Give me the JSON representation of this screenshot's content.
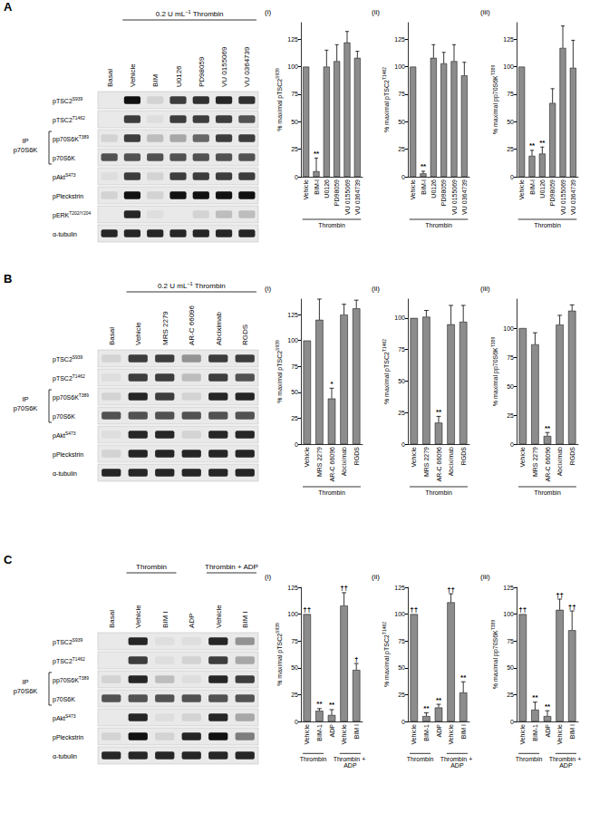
{
  "panel_labels": [
    "A",
    "B",
    "C"
  ],
  "blots": [
    {
      "panel": "A",
      "headers": [
        {
          "parts": [
            {
              "text": "0.2 U mL"
            },
            {
              "sup": "−1"
            },
            {
              "text": " Thrombin"
            }
          ],
          "from": 1,
          "to": 6
        }
      ],
      "lanes": [
        "Basal",
        "Vehicle",
        "BIM",
        "U0126",
        "PD98059",
        "VU 0155069",
        "VU 0364739"
      ],
      "ip": {
        "lines": [
          "IP",
          "p70S6K"
        ],
        "rows": [
          2,
          3
        ]
      },
      "rows": [
        {
          "label": [
            {
              "text": "pTSC2"
            },
            {
              "sup": "S939"
            }
          ],
          "bands": [
            0,
            1,
            0.1,
            0.8,
            0.85,
            0.9,
            0.85
          ]
        },
        {
          "label": [
            {
              "text": "pTSC2"
            },
            {
              "sup": "T1462"
            }
          ],
          "bands": [
            0,
            0.8,
            0.05,
            0.8,
            0.8,
            0.8,
            0.7
          ]
        },
        {
          "label": [
            {
              "text": "pp70S6K"
            },
            {
              "sup": "T389"
            }
          ],
          "bands": [
            0.1,
            0.8,
            0.2,
            0.3,
            0.6,
            0.8,
            0.8
          ]
        },
        {
          "label": [
            {
              "text": "p70S6K"
            }
          ],
          "bands": [
            0.7,
            0.7,
            0.7,
            0.7,
            0.7,
            0.7,
            0.7
          ]
        },
        {
          "label": [
            {
              "text": "pAkt"
            },
            {
              "sup": "S473"
            }
          ],
          "bands": [
            0.05,
            0.8,
            0.1,
            0.8,
            0.8,
            0.8,
            0.8
          ]
        },
        {
          "label": [
            {
              "text": "pPleckstrin"
            }
          ],
          "bands": [
            0.1,
            1,
            0.1,
            1,
            1,
            1,
            1
          ]
        },
        {
          "label": [
            {
              "text": "pERK"
            },
            {
              "sup": "T202/Y204"
            }
          ],
          "bands": [
            0,
            0.9,
            0.05,
            0,
            0.1,
            0.2,
            0.2
          ]
        },
        {
          "label": [
            {
              "text": "α-tubulin"
            }
          ],
          "bands": [
            0.9,
            0.9,
            0.9,
            0.9,
            0.9,
            0.9,
            0.9
          ]
        }
      ]
    },
    {
      "panel": "B",
      "headers": [
        {
          "parts": [
            {
              "text": "0.2 U mL"
            },
            {
              "sup": "−1"
            },
            {
              "text": " Thrombin"
            }
          ],
          "from": 1,
          "to": 5
        }
      ],
      "lanes": [
        "Basal",
        "Vehicle",
        "MRS 2279",
        "AR-C 66096",
        "Abciximab",
        "RGDS"
      ],
      "ip": {
        "lines": [
          "IP",
          "p70S6K"
        ],
        "rows": [
          2,
          3
        ]
      },
      "rows": [
        {
          "label": [
            {
              "text": "pTSC2"
            },
            {
              "sup": "S939"
            }
          ],
          "bands": [
            0.1,
            0.8,
            0.8,
            0.4,
            0.8,
            0.8
          ]
        },
        {
          "label": [
            {
              "text": "pTSC2"
            },
            {
              "sup": "T1462"
            }
          ],
          "bands": [
            0.05,
            0.8,
            0.8,
            0.2,
            0.8,
            0.7
          ]
        },
        {
          "label": [
            {
              "text": "pp70S6K"
            },
            {
              "sup": "T389"
            }
          ],
          "bands": [
            0.1,
            0.9,
            0.8,
            0.1,
            0.9,
            0.9
          ]
        },
        {
          "label": [
            {
              "text": "p70S6K"
            }
          ],
          "bands": [
            0.7,
            0.7,
            0.7,
            0.7,
            0.7,
            0.7
          ]
        },
        {
          "label": [
            {
              "text": "pAkt"
            },
            {
              "sup": "S473"
            }
          ],
          "bands": [
            0.05,
            0.9,
            0.9,
            0.1,
            0.9,
            0.9
          ]
        },
        {
          "label": [
            {
              "text": "pPleckstrin"
            }
          ],
          "bands": [
            0.1,
            0.9,
            0.9,
            0.9,
            0.9,
            0.9
          ]
        },
        {
          "label": [
            {
              "text": "α-tubulin"
            }
          ],
          "bands": [
            0.9,
            0.9,
            0.9,
            0.9,
            0.9,
            0.9
          ]
        }
      ]
    },
    {
      "panel": "C",
      "headers": [
        {
          "parts": [
            {
              "text": "Thrombin"
            }
          ],
          "from": 1,
          "to": 2
        },
        {
          "parts": [
            {
              "text": "Thrombin + ADP"
            }
          ],
          "from": 4,
          "to": 5
        }
      ],
      "lanes": [
        "Basal",
        "Vehicle",
        "BIM I",
        "ADP",
        "Vehicle",
        "BIM I"
      ],
      "ip": {
        "lines": [
          "IP",
          "p70S6K"
        ],
        "rows": [
          2,
          3
        ]
      },
      "rows": [
        {
          "label": [
            {
              "text": "pTSC2"
            },
            {
              "sup": "S939"
            }
          ],
          "bands": [
            0,
            0.9,
            0.05,
            0.05,
            0.9,
            0.4
          ]
        },
        {
          "label": [
            {
              "text": "pTSC2"
            },
            {
              "sup": "T1462"
            }
          ],
          "bands": [
            0,
            0.8,
            0.05,
            0.1,
            0.8,
            0.3
          ]
        },
        {
          "label": [
            {
              "text": "pp70S6K"
            },
            {
              "sup": "T389"
            }
          ],
          "bands": [
            0.1,
            0.9,
            0.2,
            0.05,
            0.9,
            0.8
          ]
        },
        {
          "label": [
            {
              "text": "p70S6K"
            }
          ],
          "bands": [
            0.7,
            0.7,
            0.7,
            0.7,
            0.7,
            0.7
          ]
        },
        {
          "label": [
            {
              "text": "pAkt"
            },
            {
              "sup": "S473"
            }
          ],
          "bands": [
            0,
            0.9,
            0.05,
            0.1,
            0.9,
            0.3
          ]
        },
        {
          "label": [
            {
              "text": "pPleckstrin"
            }
          ],
          "bands": [
            0.1,
            1,
            0.1,
            0.9,
            1,
            0.5
          ]
        },
        {
          "label": [
            {
              "text": "α-tubulin"
            }
          ],
          "bands": [
            0.9,
            0.9,
            0.9,
            0.9,
            0.9,
            0.9
          ]
        }
      ]
    }
  ],
  "chart_data": [
    {
      "type": "bar",
      "panel": "A",
      "title": "(i)",
      "y_label": [
        {
          "text": "% maximal pTSC2"
        },
        {
          "sup": "S939"
        }
      ],
      "categories": [
        "Vehicle",
        "BIM-I",
        "U0126",
        "PD98059",
        "VU 0155069",
        "VU 0364739"
      ],
      "values": [
        100,
        5,
        100,
        105,
        122,
        108
      ],
      "errors": [
        null,
        12,
        15,
        15,
        10,
        6
      ],
      "annotations": [
        null,
        "**",
        null,
        null,
        null,
        null
      ],
      "groups": [
        {
          "label": "Thrombin",
          "from": 0,
          "to": 5
        }
      ],
      "color": "#8c8c8c",
      "ylim": [
        0,
        140
      ],
      "yticks": [
        0,
        25,
        50,
        75,
        100,
        125
      ],
      "grid": false
    },
    {
      "type": "bar",
      "panel": "A",
      "title": "(ii)",
      "y_label": [
        {
          "text": "% maximal pTSC2"
        },
        {
          "sup": "T1462"
        }
      ],
      "categories": [
        "Vehicle",
        "BIM-I",
        "U0126",
        "PD98059",
        "VU 0155069",
        "VU 0364739"
      ],
      "values": [
        100,
        3,
        108,
        103,
        105,
        92
      ],
      "errors": [
        null,
        2,
        12,
        10,
        15,
        12
      ],
      "annotations": [
        null,
        "**",
        null,
        null,
        null,
        null
      ],
      "groups": [
        {
          "label": "Thrombin",
          "from": 0,
          "to": 5
        }
      ],
      "color": "#8c8c8c",
      "ylim": [
        0,
        140
      ],
      "yticks": [
        0,
        25,
        50,
        75,
        100,
        125
      ],
      "grid": false
    },
    {
      "type": "bar",
      "panel": "A",
      "title": "(iii)",
      "y_label": [
        {
          "text": "% maximal pp70S6K"
        },
        {
          "sup": "T389"
        }
      ],
      "categories": [
        "Vehicle",
        "BIM-I",
        "U0126",
        "PD98059",
        "VU 0155069",
        "VU 0364739"
      ],
      "values": [
        100,
        19,
        21,
        67,
        117,
        99
      ],
      "errors": [
        null,
        5,
        6,
        13,
        20,
        25
      ],
      "annotations": [
        null,
        "**",
        "**",
        null,
        null,
        null
      ],
      "groups": [
        {
          "label": "Thrombin",
          "from": 0,
          "to": 5
        }
      ],
      "color": "#8c8c8c",
      "ylim": [
        0,
        140
      ],
      "yticks": [
        0,
        25,
        50,
        75,
        100,
        125
      ],
      "grid": false
    },
    {
      "type": "bar",
      "panel": "B",
      "title": "(i)",
      "y_label": [
        {
          "text": "% maximal pTSC2"
        },
        {
          "sup": "S939"
        }
      ],
      "categories": [
        "Vehicle",
        "MRS 2279",
        "AR-C 66096",
        "Abciximab",
        "RGDS"
      ],
      "values": [
        100,
        120,
        44,
        125,
        131
      ],
      "errors": [
        null,
        20,
        10,
        10,
        8
      ],
      "annotations": [
        null,
        null,
        "*",
        null,
        null
      ],
      "groups": [
        {
          "label": "Thrombin",
          "from": 0,
          "to": 4
        }
      ],
      "color": "#8c8c8c",
      "ylim": [
        0,
        140
      ],
      "yticks": [
        0,
        25,
        50,
        75,
        100,
        125
      ],
      "grid": false
    },
    {
      "type": "bar",
      "panel": "B",
      "title": "(ii)",
      "y_label": [
        {
          "text": "% maximal pTSC2"
        },
        {
          "sup": "T1462"
        }
      ],
      "categories": [
        "Vehicle",
        "MRS 2279",
        "AR-C 66096",
        "Abciximab",
        "RGDS"
      ],
      "values": [
        100,
        101,
        17,
        95,
        97
      ],
      "errors": [
        null,
        5,
        5,
        15,
        13
      ],
      "annotations": [
        null,
        null,
        "**",
        null,
        null
      ],
      "groups": [
        {
          "label": "Thrombin",
          "from": 0,
          "to": 4
        }
      ],
      "color": "#8c8c8c",
      "ylim": [
        0,
        115
      ],
      "yticks": [
        0,
        25,
        50,
        75,
        100
      ],
      "grid": false
    },
    {
      "type": "bar",
      "panel": "B",
      "title": "(iii)",
      "y_label": [
        {
          "text": "% maximal pp70S6K"
        },
        {
          "sup": "T389"
        }
      ],
      "categories": [
        "Vehicle",
        "MRS 2279",
        "AR-C 66096",
        "Abciximab",
        "RGDS"
      ],
      "values": [
        100,
        86,
        7,
        103,
        115
      ],
      "errors": [
        null,
        10,
        3,
        8,
        5
      ],
      "annotations": [
        null,
        null,
        "**",
        null,
        null
      ],
      "groups": [
        {
          "label": "Thrombin",
          "from": 0,
          "to": 4
        }
      ],
      "color": "#8c8c8c",
      "ylim": [
        0,
        125
      ],
      "yticks": [
        0,
        25,
        50,
        75,
        100
      ],
      "grid": false
    },
    {
      "type": "bar",
      "panel": "C",
      "title": "(i)",
      "y_label": [
        {
          "text": "% maximal pTSC2"
        },
        {
          "sup": "S939"
        }
      ],
      "categories": [
        "Vehicle",
        "BIM-1",
        "ADP",
        "Vehicle",
        "BIM I"
      ],
      "values": [
        100,
        10,
        6,
        108,
        48
      ],
      "errors": [
        null,
        2,
        5,
        12,
        6
      ],
      "annotations": [
        "††",
        "**",
        "**",
        "††",
        "†"
      ],
      "groups": [
        {
          "label": "Thrombin",
          "from": 0,
          "to": 1
        },
        {
          "label": "Thrombin + ADP",
          "from": 3,
          "to": 4
        }
      ],
      "color": "#8c8c8c",
      "ylim": [
        0,
        125
      ],
      "yticks": [
        0,
        25,
        50,
        75,
        100,
        125
      ],
      "grid": false
    },
    {
      "type": "bar",
      "panel": "C",
      "title": "(ii)",
      "y_label": [
        {
          "text": "% maximal pTSC2"
        },
        {
          "sup": "T1462"
        }
      ],
      "categories": [
        "Vehicle",
        "BIM-1",
        "ADP",
        "Vehicle",
        "BIM I"
      ],
      "values": [
        100,
        5,
        13,
        111,
        27
      ],
      "errors": [
        null,
        3,
        3,
        8,
        10
      ],
      "annotations": [
        "††",
        "**",
        "**",
        "††",
        "**"
      ],
      "groups": [
        {
          "label": "Thrombin",
          "from": 0,
          "to": 1
        },
        {
          "label": "Thrombin + ADP",
          "from": 3,
          "to": 4
        }
      ],
      "color": "#8c8c8c",
      "ylim": [
        0,
        125
      ],
      "yticks": [
        0,
        25,
        50,
        75,
        100,
        125
      ],
      "grid": false
    },
    {
      "type": "bar",
      "panel": "C",
      "title": "(iii)",
      "y_label": [
        {
          "text": "% maximal pp70S6K"
        },
        {
          "sup": "T389"
        }
      ],
      "categories": [
        "Vehicle",
        "BIM-1",
        "ADP",
        "Vehicle",
        "BIM I"
      ],
      "values": [
        100,
        11,
        5,
        104,
        85
      ],
      "errors": [
        null,
        7,
        5,
        10,
        18
      ],
      "annotations": [
        "††",
        "**",
        "**",
        "††",
        "††"
      ],
      "groups": [
        {
          "label": "Thrombin",
          "from": 0,
          "to": 1
        },
        {
          "label": "Thrombin + ADP",
          "from": 3,
          "to": 4
        }
      ],
      "color": "#8c8c8c",
      "ylim": [
        0,
        125
      ],
      "yticks": [
        0,
        25,
        50,
        75,
        100,
        125
      ],
      "grid": false
    }
  ]
}
